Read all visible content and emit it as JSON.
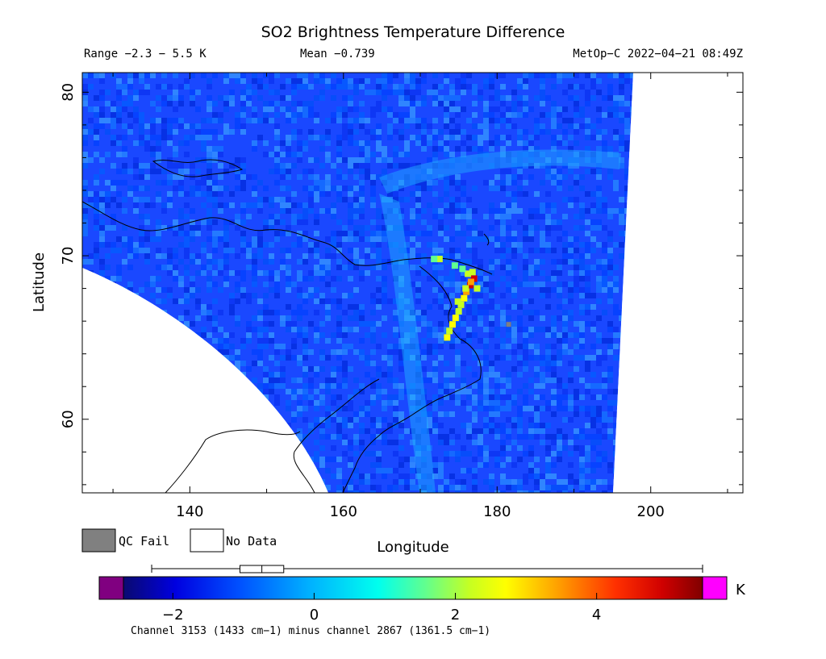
{
  "header": {
    "title": "SO2 Brightness Temperature Difference",
    "range_text": "Range −2.3 − 5.5 K",
    "mean_text": "Mean −0.739",
    "satellite_text": "MetOp−C 2022−04−21 08:49Z"
  },
  "legend": {
    "qc_fail_label": "QC Fail",
    "qc_fail_color": "#808080",
    "no_data_label": "No Data",
    "no_data_color": "#ffffff"
  },
  "colorbar": {
    "unit": "K",
    "min": -2.7,
    "max": 5.5,
    "tick_labels": [
      "−2",
      "0",
      "2",
      "4"
    ],
    "tick_values": [
      -2,
      0,
      2,
      4
    ],
    "under_color": "#800080",
    "over_color": "#ff00ff",
    "palette": [
      "#0a0a70",
      "#0000e0",
      "#0050ff",
      "#00b0ff",
      "#00ffee",
      "#60ff90",
      "#c8ff20",
      "#ffff00",
      "#ffa000",
      "#ff3000",
      "#d00000",
      "#800000"
    ],
    "box_plot": {
      "whisker_low": -2.3,
      "q1": -1.05,
      "median": -0.74,
      "q3": -0.43,
      "whisker_high": 5.5
    },
    "caption": "Channel 3153 (1433 cm−1) minus channel 2867 (1361.5 cm−1)"
  },
  "chart_data": {
    "type": "heatmap",
    "title": "SO2 Brightness Temperature Difference",
    "xlabel": "Longitude",
    "ylabel": "Latitude",
    "xlim": [
      126,
      212
    ],
    "ylim": [
      55.5,
      81.2
    ],
    "x_ticks": [
      140,
      160,
      180,
      200
    ],
    "x_tick_labels": [
      "140",
      "160",
      "180",
      "200"
    ],
    "y_ticks": [
      60,
      70,
      80
    ],
    "y_tick_labels": [
      "60",
      "70",
      "80"
    ],
    "value_range": [
      -2.3,
      5.5
    ],
    "mean": -0.739,
    "units": "K",
    "features": [
      {
        "kind": "so2 plume peak",
        "lon": 176,
        "lat": 68.5,
        "value": 5.0
      },
      {
        "kind": "so2 plume",
        "lon": 175,
        "lat": 67.5,
        "value": 2.5
      },
      {
        "kind": "so2 plume",
        "lon": 174.5,
        "lat": 66.5,
        "value": 2.0
      },
      {
        "kind": "qc fail",
        "lon": 181.5,
        "lat": 65.8
      }
    ]
  }
}
